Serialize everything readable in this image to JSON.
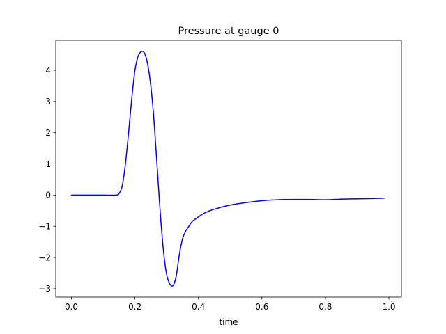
{
  "chart_data": {
    "type": "line",
    "title": "Pressure at gauge 0",
    "xlabel": "time",
    "ylabel": "",
    "xlim": [
      -0.0495,
      1.0395
    ],
    "ylim": [
      -3.27,
      4.96
    ],
    "xticks": [
      0.0,
      0.2,
      0.4,
      0.6,
      0.8,
      1.0
    ],
    "xtick_labels": [
      "0.0",
      "0.2",
      "0.4",
      "0.6",
      "0.8",
      "1.0"
    ],
    "yticks": [
      -3,
      -2,
      -1,
      0,
      1,
      2,
      3,
      4
    ],
    "ytick_labels": [
      "−3",
      "−2",
      "−1",
      "0",
      "1",
      "2",
      "3",
      "4"
    ],
    "grid": false,
    "series": [
      {
        "color": "#0000ff",
        "x": [
          0.0,
          0.05,
          0.1,
          0.14,
          0.15,
          0.16,
          0.17,
          0.18,
          0.19,
          0.2,
          0.21,
          0.22,
          0.23,
          0.24,
          0.25,
          0.26,
          0.27,
          0.28,
          0.29,
          0.3,
          0.31,
          0.32,
          0.33,
          0.34,
          0.35,
          0.36,
          0.37,
          0.38,
          0.4,
          0.42,
          0.45,
          0.5,
          0.55,
          0.6,
          0.65,
          0.7,
          0.75,
          0.8,
          0.85,
          0.9,
          0.95,
          0.985
        ],
        "y": [
          0.0,
          0.0,
          0.0,
          0.0,
          0.05,
          0.3,
          1.0,
          2.0,
          3.1,
          4.0,
          4.45,
          4.6,
          4.55,
          4.2,
          3.5,
          2.4,
          0.9,
          -0.6,
          -1.8,
          -2.55,
          -2.85,
          -2.9,
          -2.6,
          -1.9,
          -1.4,
          -1.15,
          -1.0,
          -0.85,
          -0.7,
          -0.57,
          -0.45,
          -0.32,
          -0.24,
          -0.18,
          -0.15,
          -0.14,
          -0.14,
          -0.15,
          -0.13,
          -0.12,
          -0.11,
          -0.1
        ]
      }
    ]
  }
}
